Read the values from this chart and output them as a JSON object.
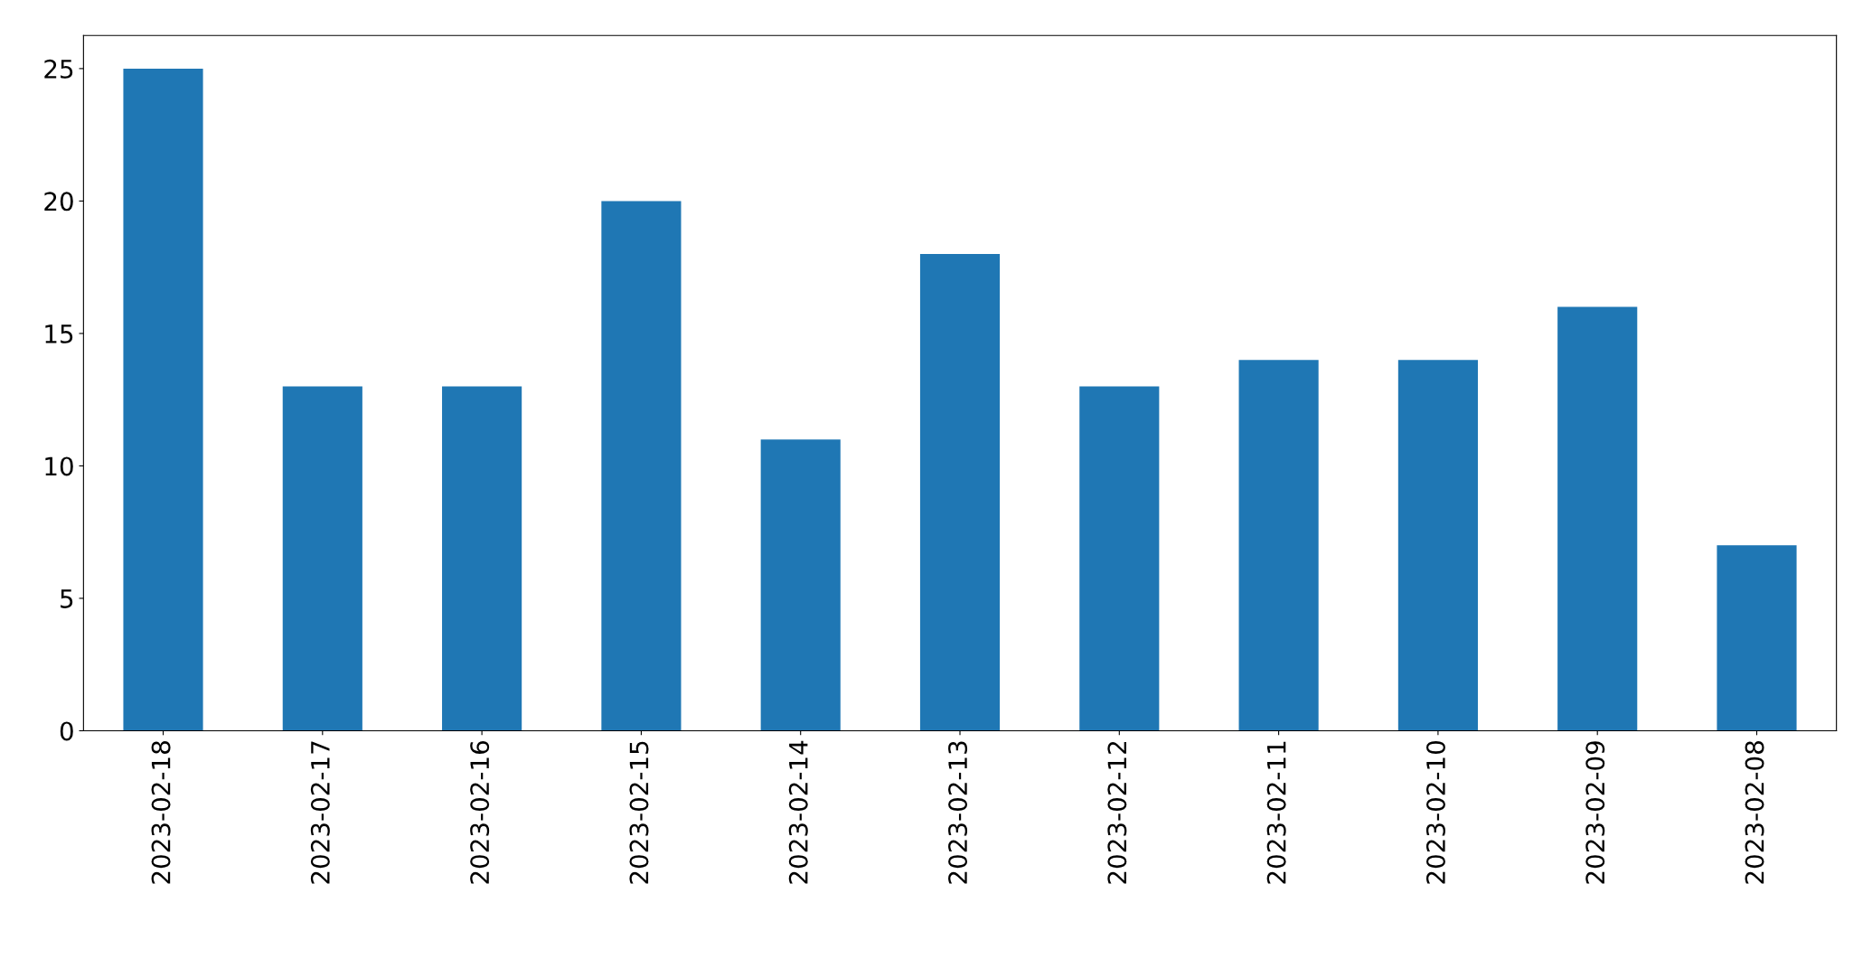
{
  "chart_data": {
    "type": "bar",
    "categories": [
      "2023-02-18",
      "2023-02-17",
      "2023-02-16",
      "2023-02-15",
      "2023-02-14",
      "2023-02-13",
      "2023-02-12",
      "2023-02-11",
      "2023-02-10",
      "2023-02-09",
      "2023-02-08"
    ],
    "values": [
      25,
      13,
      13,
      20,
      11,
      18,
      13,
      14,
      14,
      16,
      7
    ],
    "color": "#1f77b4",
    "ylim": [
      0,
      26.25
    ],
    "yticks": [
      0,
      5,
      10,
      15,
      20,
      25
    ],
    "grid": false,
    "legend": false
  }
}
